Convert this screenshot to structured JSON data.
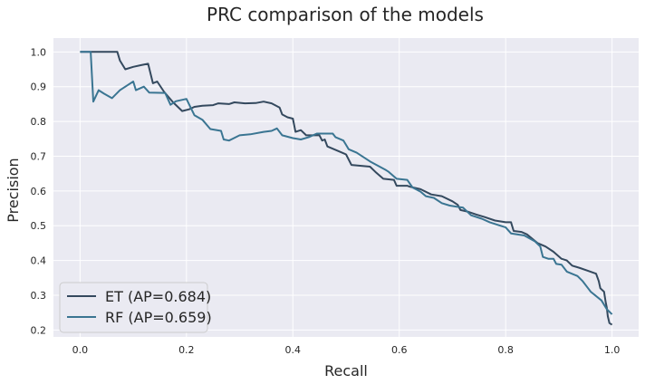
{
  "chart_data": {
    "type": "line",
    "title": "PRC comparison of the models",
    "xlabel": "Recall",
    "ylabel": "Precision",
    "xlim": [
      -0.05,
      1.05
    ],
    "ylim": [
      0.18,
      1.04
    ],
    "xticks": [
      0.0,
      0.2,
      0.4,
      0.6,
      0.8,
      1.0
    ],
    "xtick_labels": [
      "0.0",
      "0.2",
      "0.4",
      "0.6",
      "0.8",
      "1.0"
    ],
    "yticks": [
      0.2,
      0.3,
      0.4,
      0.5,
      0.6,
      0.7,
      0.8,
      0.9,
      1.0
    ],
    "ytick_labels": [
      "0.2",
      "0.3",
      "0.4",
      "0.5",
      "0.6",
      "0.7",
      "0.8",
      "0.9",
      "1.0"
    ],
    "grid": true,
    "legend_position": "lower-left",
    "background_color": "#eaeaf2",
    "grid_color": "#ffffff",
    "series": [
      {
        "name": "ET (AP=0.684)",
        "color": "#34495e",
        "points": [
          [
            0.0,
            1.0
          ],
          [
            0.07,
            1.0
          ],
          [
            0.075,
            0.975
          ],
          [
            0.085,
            0.95
          ],
          [
            0.1,
            0.957
          ],
          [
            0.115,
            0.962
          ],
          [
            0.128,
            0.966
          ],
          [
            0.137,
            0.91
          ],
          [
            0.145,
            0.915
          ],
          [
            0.158,
            0.885
          ],
          [
            0.175,
            0.855
          ],
          [
            0.192,
            0.83
          ],
          [
            0.205,
            0.835
          ],
          [
            0.215,
            0.842
          ],
          [
            0.23,
            0.845
          ],
          [
            0.25,
            0.847
          ],
          [
            0.26,
            0.852
          ],
          [
            0.28,
            0.85
          ],
          [
            0.29,
            0.855
          ],
          [
            0.31,
            0.852
          ],
          [
            0.33,
            0.853
          ],
          [
            0.345,
            0.857
          ],
          [
            0.36,
            0.852
          ],
          [
            0.375,
            0.84
          ],
          [
            0.38,
            0.82
          ],
          [
            0.39,
            0.812
          ],
          [
            0.4,
            0.808
          ],
          [
            0.405,
            0.77
          ],
          [
            0.415,
            0.775
          ],
          [
            0.425,
            0.76
          ],
          [
            0.45,
            0.76
          ],
          [
            0.455,
            0.745
          ],
          [
            0.46,
            0.748
          ],
          [
            0.465,
            0.728
          ],
          [
            0.485,
            0.715
          ],
          [
            0.5,
            0.705
          ],
          [
            0.51,
            0.675
          ],
          [
            0.545,
            0.67
          ],
          [
            0.555,
            0.655
          ],
          [
            0.57,
            0.635
          ],
          [
            0.59,
            0.632
          ],
          [
            0.595,
            0.615
          ],
          [
            0.615,
            0.615
          ],
          [
            0.62,
            0.612
          ],
          [
            0.64,
            0.605
          ],
          [
            0.66,
            0.59
          ],
          [
            0.68,
            0.585
          ],
          [
            0.7,
            0.57
          ],
          [
            0.71,
            0.56
          ],
          [
            0.715,
            0.545
          ],
          [
            0.73,
            0.54
          ],
          [
            0.745,
            0.532
          ],
          [
            0.76,
            0.525
          ],
          [
            0.78,
            0.515
          ],
          [
            0.8,
            0.51
          ],
          [
            0.81,
            0.51
          ],
          [
            0.815,
            0.485
          ],
          [
            0.83,
            0.482
          ],
          [
            0.84,
            0.475
          ],
          [
            0.86,
            0.45
          ],
          [
            0.875,
            0.44
          ],
          [
            0.89,
            0.425
          ],
          [
            0.905,
            0.405
          ],
          [
            0.915,
            0.4
          ],
          [
            0.925,
            0.385
          ],
          [
            0.94,
            0.378
          ],
          [
            0.955,
            0.37
          ],
          [
            0.97,
            0.362
          ],
          [
            0.975,
            0.34
          ],
          [
            0.978,
            0.32
          ],
          [
            0.985,
            0.31
          ],
          [
            0.988,
            0.28
          ],
          [
            0.99,
            0.265
          ],
          [
            0.992,
            0.24
          ],
          [
            0.995,
            0.22
          ],
          [
            1.0,
            0.215
          ]
        ]
      },
      {
        "name": "RF (AP=0.659)",
        "color": "#3a7592",
        "points": [
          [
            0.0,
            1.0
          ],
          [
            0.02,
            1.0
          ],
          [
            0.025,
            0.857
          ],
          [
            0.035,
            0.89
          ],
          [
            0.045,
            0.88
          ],
          [
            0.06,
            0.867
          ],
          [
            0.075,
            0.89
          ],
          [
            0.09,
            0.905
          ],
          [
            0.1,
            0.915
          ],
          [
            0.105,
            0.89
          ],
          [
            0.12,
            0.9
          ],
          [
            0.13,
            0.883
          ],
          [
            0.16,
            0.882
          ],
          [
            0.17,
            0.848
          ],
          [
            0.18,
            0.858
          ],
          [
            0.2,
            0.865
          ],
          [
            0.215,
            0.818
          ],
          [
            0.23,
            0.805
          ],
          [
            0.245,
            0.778
          ],
          [
            0.265,
            0.773
          ],
          [
            0.27,
            0.748
          ],
          [
            0.28,
            0.745
          ],
          [
            0.3,
            0.76
          ],
          [
            0.32,
            0.763
          ],
          [
            0.345,
            0.77
          ],
          [
            0.36,
            0.773
          ],
          [
            0.37,
            0.78
          ],
          [
            0.38,
            0.76
          ],
          [
            0.4,
            0.752
          ],
          [
            0.415,
            0.748
          ],
          [
            0.43,
            0.755
          ],
          [
            0.445,
            0.765
          ],
          [
            0.475,
            0.765
          ],
          [
            0.48,
            0.755
          ],
          [
            0.495,
            0.745
          ],
          [
            0.505,
            0.72
          ],
          [
            0.52,
            0.71
          ],
          [
            0.545,
            0.685
          ],
          [
            0.575,
            0.66
          ],
          [
            0.58,
            0.655
          ],
          [
            0.595,
            0.635
          ],
          [
            0.615,
            0.632
          ],
          [
            0.625,
            0.61
          ],
          [
            0.64,
            0.598
          ],
          [
            0.65,
            0.585
          ],
          [
            0.665,
            0.58
          ],
          [
            0.68,
            0.565
          ],
          [
            0.695,
            0.558
          ],
          [
            0.72,
            0.552
          ],
          [
            0.735,
            0.53
          ],
          [
            0.755,
            0.52
          ],
          [
            0.77,
            0.51
          ],
          [
            0.79,
            0.5
          ],
          [
            0.8,
            0.495
          ],
          [
            0.81,
            0.478
          ],
          [
            0.835,
            0.472
          ],
          [
            0.855,
            0.455
          ],
          [
            0.865,
            0.44
          ],
          [
            0.87,
            0.41
          ],
          [
            0.88,
            0.405
          ],
          [
            0.89,
            0.405
          ],
          [
            0.895,
            0.39
          ],
          [
            0.905,
            0.388
          ],
          [
            0.915,
            0.368
          ],
          [
            0.935,
            0.355
          ],
          [
            0.945,
            0.34
          ],
          [
            0.955,
            0.32
          ],
          [
            0.96,
            0.31
          ],
          [
            0.98,
            0.285
          ],
          [
            0.99,
            0.26
          ],
          [
            1.0,
            0.245
          ]
        ]
      }
    ]
  }
}
